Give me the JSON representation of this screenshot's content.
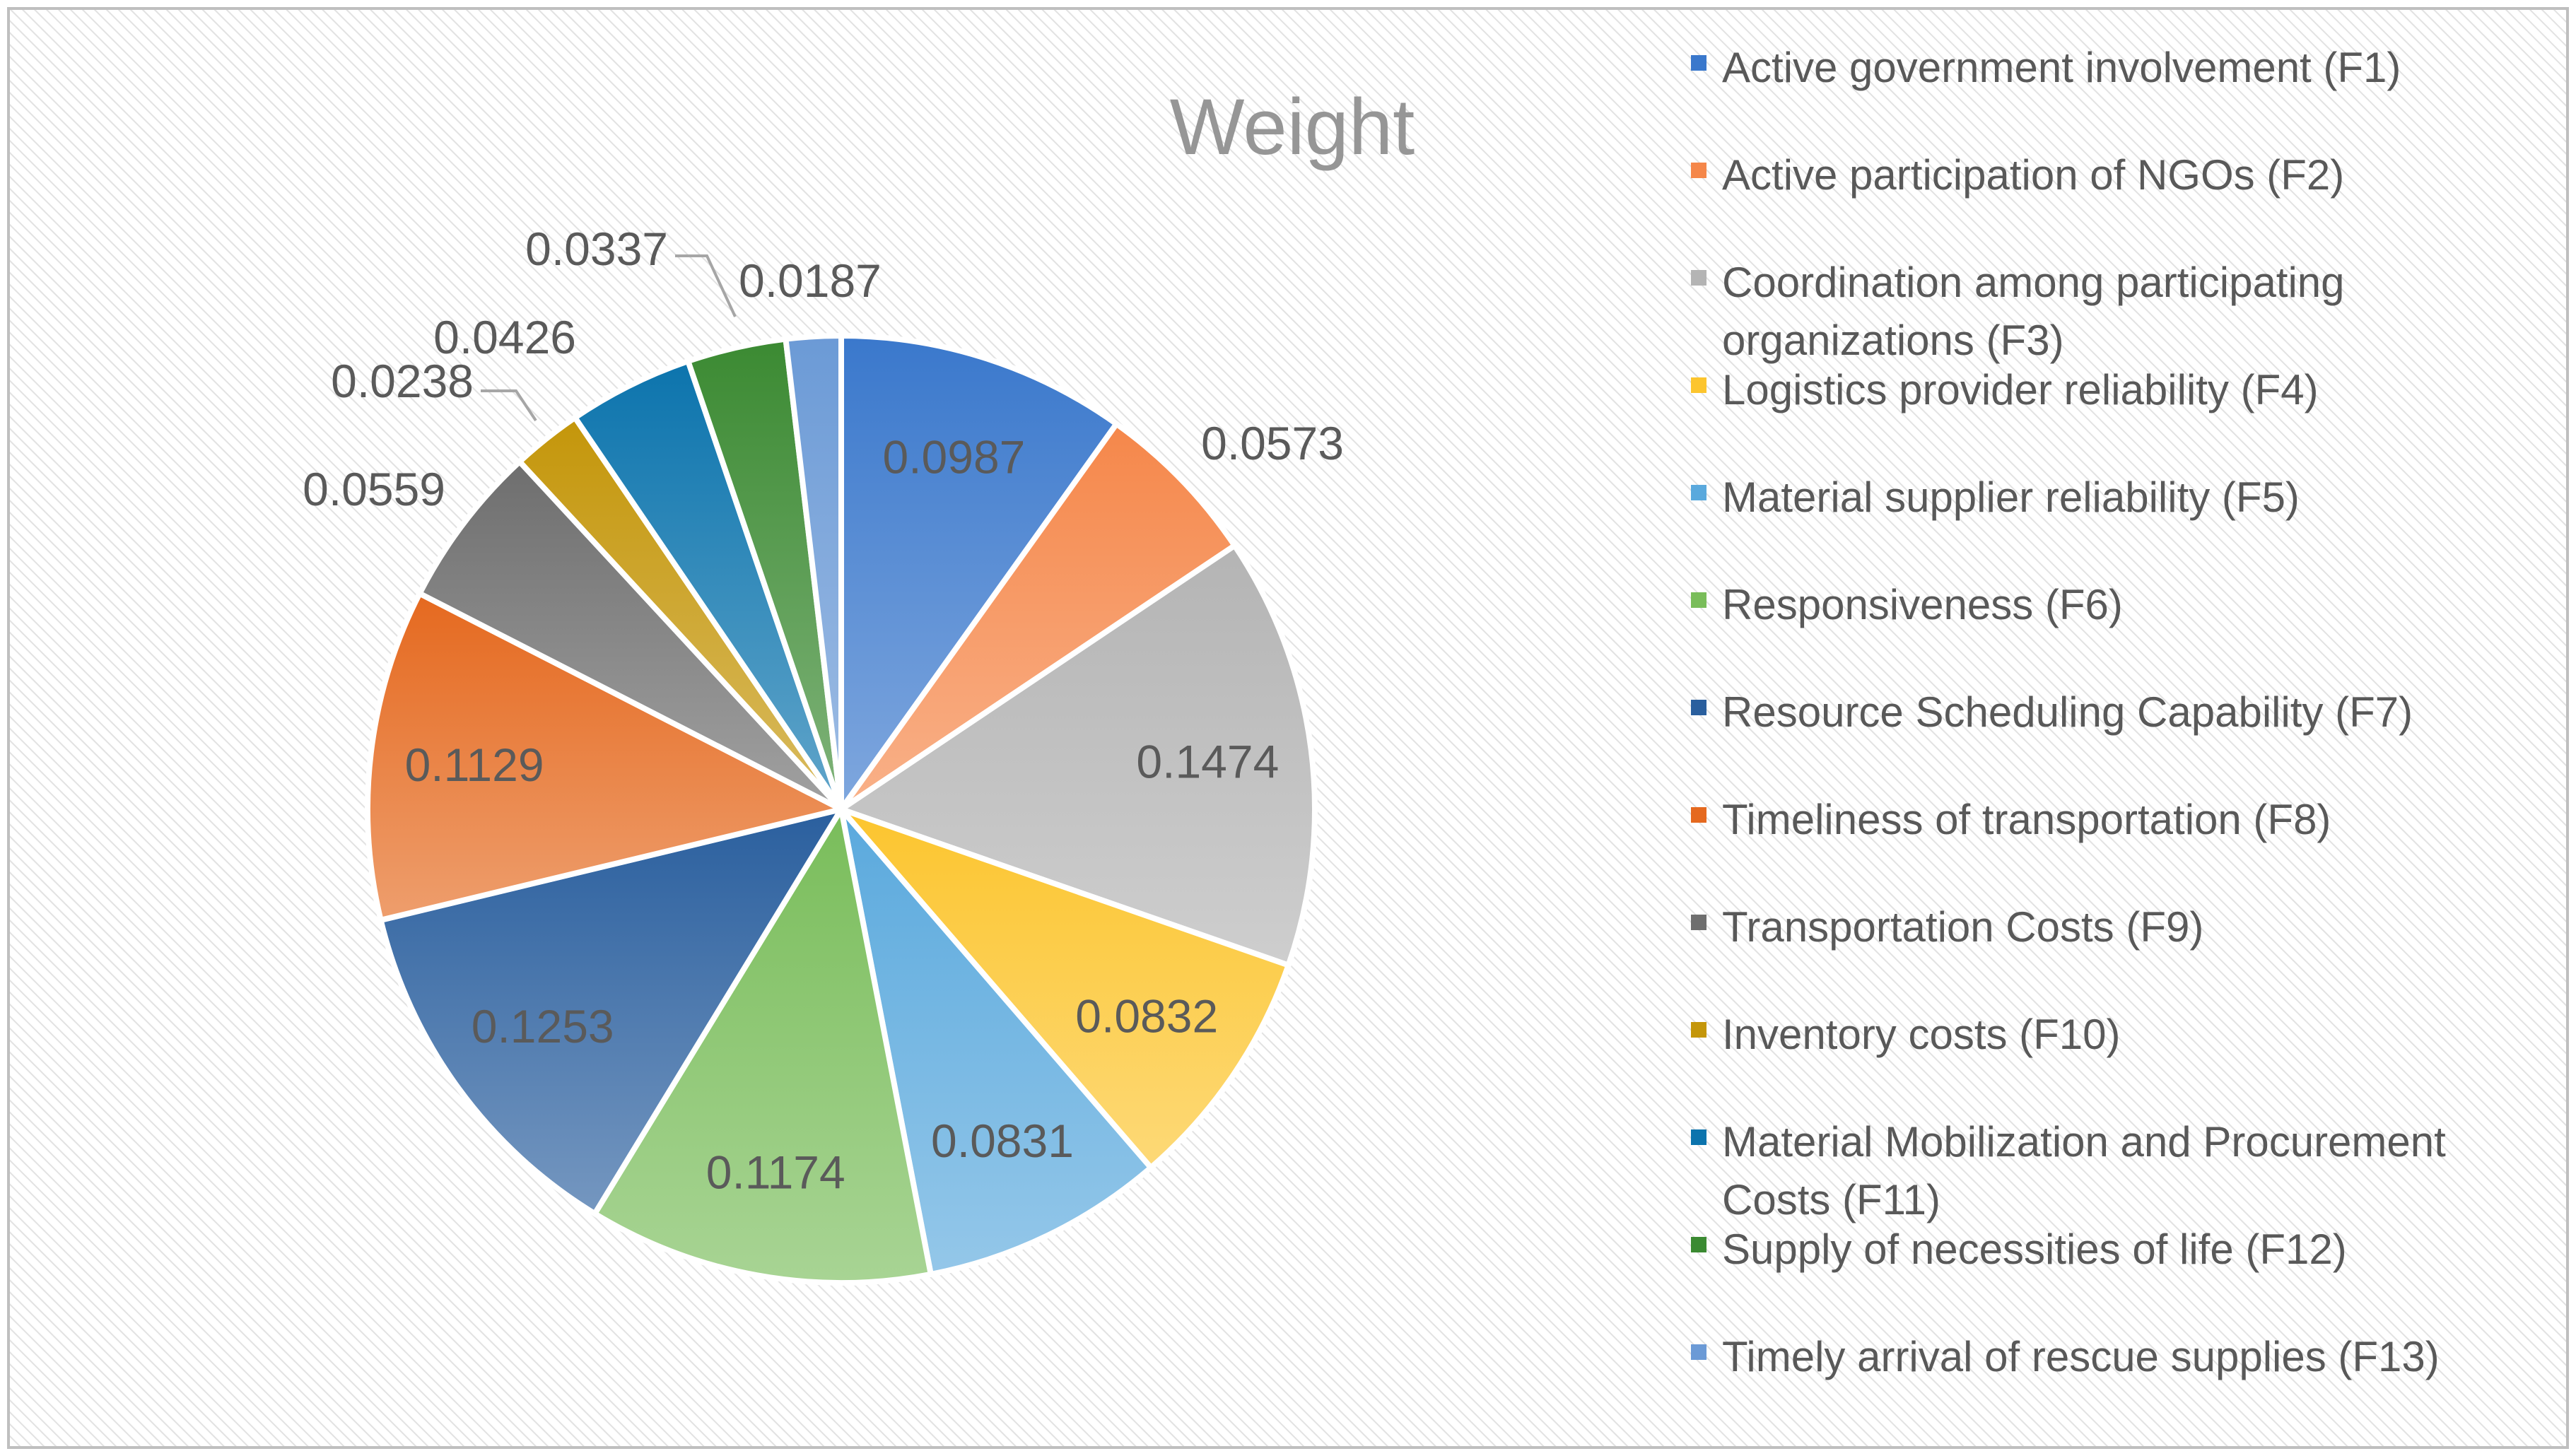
{
  "chart_data": {
    "type": "pie",
    "title": "Weight",
    "legend_position": "right",
    "slices": [
      {
        "label": "Active government involvement (F1)",
        "value": 0.0987,
        "value_label": "0.0987",
        "color": "#3a78cc",
        "legend_lines": [
          "Active government involvement (F1)"
        ]
      },
      {
        "label": "Active participation of NGOs (F2)",
        "value": 0.0573,
        "value_label": "0.0573",
        "color": "#f5874a",
        "legend_lines": [
          "Active participation of NGOs (F2)"
        ]
      },
      {
        "label": "Coordination among participating organizations (F3)",
        "value": 0.1474,
        "value_label": "0.1474",
        "color": "#b4b4b4",
        "legend_lines": [
          "Coordination among participating",
          "organizations (F3)"
        ]
      },
      {
        "label": "Logistics provider reliability (F4)",
        "value": 0.0832,
        "value_label": "0.0832",
        "color": "#fcc52e",
        "legend_lines": [
          "Logistics provider reliability (F4)"
        ]
      },
      {
        "label": "Material supplier reliability (F5)",
        "value": 0.0831,
        "value_label": "0.0831",
        "color": "#5aa9dd",
        "legend_lines": [
          "Material supplier reliability (F5)"
        ]
      },
      {
        "label": "Responsiveness (F6)",
        "value": 0.1174,
        "value_label": "0.1174",
        "color": "#79bd5a",
        "legend_lines": [
          "Responsiveness (F6)"
        ]
      },
      {
        "label": "Resource Scheduling Capability (F7)",
        "value": 0.1253,
        "value_label": "0.1253",
        "color": "#2a5f9e",
        "legend_lines": [
          "Resource Scheduling Capability (F7)"
        ]
      },
      {
        "label": "Timeliness of transportation (F8)",
        "value": 0.1129,
        "value_label": "0.1129",
        "color": "#e5691f",
        "legend_lines": [
          "Timeliness of transportation (F8)"
        ]
      },
      {
        "label": "Transportation Costs (F9)",
        "value": 0.0559,
        "value_label": "0.0559",
        "color": "#6e6e6e",
        "legend_lines": [
          "Transportation Costs (F9)"
        ]
      },
      {
        "label": "Inventory costs (F10)",
        "value": 0.0238,
        "value_label": "0.0238",
        "color": "#c4960a",
        "legend_lines": [
          "Inventory costs (F10)"
        ]
      },
      {
        "label": "Material Mobilization and Procurement Costs (F11)",
        "value": 0.0426,
        "value_label": "0.0426",
        "color": "#0c74ad",
        "legend_lines": [
          "Material Mobilization and Procurement",
          "Costs (F11)"
        ]
      },
      {
        "label": "Supply of necessities of life (F12)",
        "value": 0.0337,
        "value_label": "0.0337",
        "color": "#3b8a32",
        "legend_lines": [
          "Supply of necessities of life (F12)"
        ]
      },
      {
        "label": "Timely arrival of rescue supplies (F13)",
        "value": 0.0187,
        "value_label": "0.0187",
        "color": "#6b9ad6",
        "legend_lines": [
          "Timely arrival of rescue supplies (F13)"
        ]
      }
    ]
  }
}
